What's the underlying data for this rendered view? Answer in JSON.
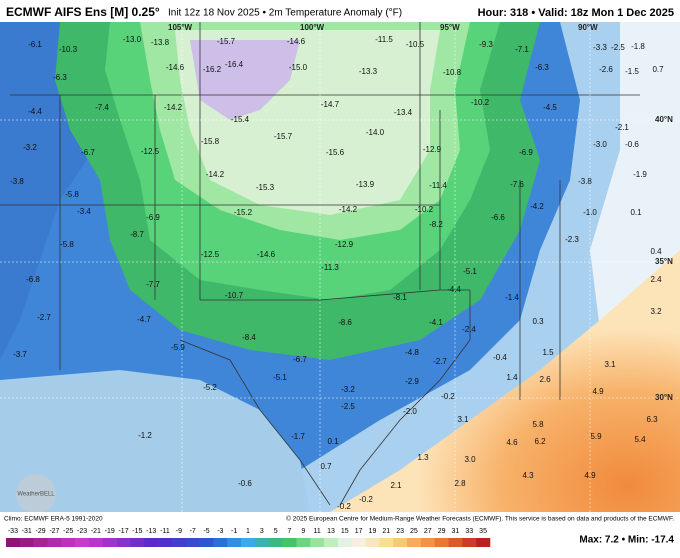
{
  "header": {
    "title": "ECMWF AIFS Ens [M] 0.25°",
    "subtitle": "Init 12z 18 Nov 2025 • 2m Temperature Anomaly (°F)",
    "valid": "Hour: 318 • Valid: 18z Mon 1 Dec 2025"
  },
  "grid_labels": [
    "105°W",
    "100°W",
    "95°W",
    "90°W",
    "40°N",
    "35°N",
    "30°N"
  ],
  "map_values": [
    "-6.1",
    "-10.3",
    "-13.0",
    "-13.8",
    "-15.7",
    "-14.6",
    "-11.5",
    "-10.5",
    "-9.3",
    "-7.1",
    "-3.3",
    "-2.5",
    "-1.8",
    "-6.3",
    "-14.6",
    "-16.2",
    "-16.4",
    "-15.0",
    "-13.3",
    "-10.8",
    "-6.3",
    "-2.6",
    "-1.5",
    "0.7",
    "-4.4",
    "-7.4",
    "-14.2",
    "-15.4",
    "-14.7",
    "-13.4",
    "-10.2",
    "-4.5",
    "-2.1",
    "-3.2",
    "-6.7",
    "-12.5",
    "-15.8",
    "-15.7",
    "-15.6",
    "-14.0",
    "-12.9",
    "-6.9",
    "-3.0",
    "-0.6",
    "-3.8",
    "-5.8",
    "-14.2",
    "-15.3",
    "-13.9",
    "-11.4",
    "-7.6",
    "-3.8",
    "-1.9",
    "-3.4",
    "-6.9",
    "-15.2",
    "-14.2",
    "-10.2",
    "-6.6",
    "-4.2",
    "-1.0",
    "0.1",
    "-5.8",
    "-8.7",
    "-12.5",
    "-14.6",
    "-12.9",
    "-8.2",
    "-5.1",
    "-2.3",
    "0.4",
    "-6.8",
    "-7.7",
    "-10.7",
    "-11.3",
    "-8.1",
    "-4.4",
    "-1.4",
    "2.4",
    "-2.7",
    "-4.7",
    "-8.4",
    "-8.6",
    "-4.1",
    "-2.4",
    "0.3",
    "3.2",
    "-3.7",
    "-5.9",
    "-6.7",
    "-4.8",
    "-2.7",
    "-0.4",
    "1.5",
    "3.1",
    "-5.2",
    "-5.1",
    "-3.2",
    "-2.9",
    "1.4",
    "2.6",
    "4.9",
    "6.3",
    "-2.5",
    "-2.0",
    "-0.2",
    "3.1",
    "5.8",
    "5.9",
    "5.4",
    "-1.2",
    "-1.7",
    "0.1",
    "1.3",
    "3.0",
    "4.6",
    "6.2",
    "-0.6",
    "0.7",
    "2.8",
    "4.3",
    "4.9",
    "2.1",
    "-0.2",
    "-0.2"
  ],
  "watermark": "WeatherBELL",
  "footer": {
    "climo": "Climo: ECMWF ERA-5 1991-2020",
    "credit": "© 2025 European Centre for Medium-Range Weather Forecasts (ECMWF). This service is based on data and products of the ECMWF.",
    "range": "Max: 7.2 • Min: -17.4"
  },
  "colorbar_labels": [
    "-33",
    "-31",
    "-29",
    "-27",
    "-25",
    "-23",
    "-21",
    "-19",
    "-17",
    "-15",
    "-13",
    "-11",
    "-9",
    "-7",
    "-5",
    "-3",
    "-1",
    "1",
    "3",
    "5",
    "7",
    "9",
    "11",
    "13",
    "15",
    "17",
    "19",
    "21",
    "23",
    "25",
    "27",
    "29",
    "31",
    "33",
    "35"
  ]
}
